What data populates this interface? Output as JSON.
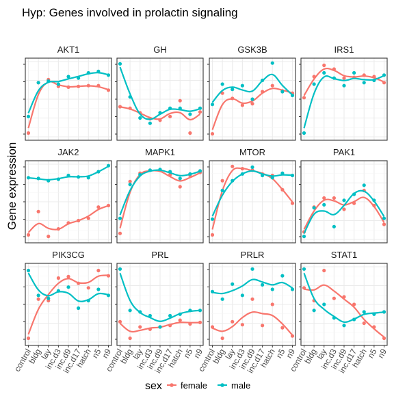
{
  "chart_data": {
    "type": "line",
    "title": "Hyp: Genes involved in prolactin signaling",
    "xlabel": "",
    "ylabel": "Gene expression",
    "categories": [
      "control",
      "bldg",
      "lay",
      "inc.d3",
      "inc.d9",
      "inc.d17",
      "hatch",
      "n5",
      "n9"
    ],
    "facet_grid": {
      "rows": 3,
      "cols": 4
    },
    "grid": true,
    "legend": {
      "title": "sex",
      "position": "bottom",
      "entries": [
        {
          "name": "female",
          "color": "#F8766D"
        },
        {
          "name": "male",
          "color": "#00BFC4"
        }
      ]
    },
    "colors": {
      "female": "#F8766D",
      "male": "#00BFC4"
    },
    "panels": [
      {
        "gene": "AKT1",
        "female": [
          0.05,
          0.72,
          0.76,
          0.67,
          0.66,
          0.67,
          0.68,
          0.68,
          0.62
        ],
        "male": [
          0.27,
          0.72,
          0.74,
          0.7,
          0.8,
          0.78,
          0.85,
          0.87,
          0.82
        ]
      },
      {
        "gene": "GH",
        "female": [
          0.4,
          0.38,
          0.32,
          0.24,
          0.22,
          0.27,
          0.48,
          0.05,
          0.33
        ],
        "male": [
          0.97,
          0.53,
          0.25,
          0.18,
          0.32,
          0.38,
          0.38,
          0.3,
          0.38
        ]
      },
      {
        "gene": "GSK3B",
        "female": [
          0.04,
          0.58,
          0.51,
          0.42,
          0.44,
          0.6,
          0.68,
          0.61,
          0.58
        ],
        "male": [
          0.43,
          0.7,
          0.63,
          0.68,
          0.5,
          0.75,
          0.98,
          0.6,
          0.55
        ]
      },
      {
        "gene": "IRS1",
        "female": [
          0.52,
          0.8,
          0.95,
          0.9,
          0.78,
          0.79,
          0.82,
          0.8,
          0.72
        ],
        "male": [
          0.05,
          0.7,
          0.85,
          0.78,
          0.68,
          0.85,
          0.72,
          0.75,
          0.82
        ]
      },
      {
        "gene": "JAK2",
        "female": [
          0.06,
          0.37,
          0.04,
          0.14,
          0.22,
          0.25,
          0.28,
          0.43,
          0.45
        ],
        "male": [
          0.82,
          0.81,
          0.78,
          0.8,
          0.85,
          0.83,
          0.82,
          0.9,
          0.98
        ]
      },
      {
        "gene": "MAPK1",
        "female": [
          0.08,
          0.77,
          0.88,
          0.92,
          0.92,
          0.86,
          0.7,
          0.85,
          0.89
        ],
        "male": [
          0.28,
          0.73,
          0.86,
          0.92,
          0.93,
          0.9,
          0.81,
          0.87,
          0.91
        ]
      },
      {
        "gene": "MTOR",
        "female": [
          0.06,
          0.78,
          0.97,
          0.94,
          0.92,
          0.87,
          0.85,
          0.66,
          0.48
        ],
        "male": [
          0.27,
          0.65,
          0.78,
          0.87,
          0.96,
          0.85,
          0.82,
          0.88,
          0.85
        ]
      },
      {
        "gene": "PAK1",
        "female": [
          0.1,
          0.43,
          0.55,
          0.55,
          0.4,
          0.48,
          0.65,
          0.45,
          0.2
        ],
        "male": [
          0.04,
          0.42,
          0.46,
          0.17,
          0.52,
          0.6,
          0.72,
          0.52,
          0.28
        ]
      },
      {
        "gene": "PIK3CG",
        "female": [
          0.05,
          0.57,
          0.55,
          0.85,
          0.87,
          0.78,
          0.72,
          0.95,
          0.88
        ],
        "male": [
          0.95,
          0.62,
          0.58,
          0.68,
          0.73,
          0.45,
          0.55,
          0.7,
          0.62
        ]
      },
      {
        "gene": "PRL",
        "female": [
          0.27,
          0.05,
          0.2,
          0.17,
          0.2,
          0.22,
          0.29,
          0.24,
          0.26
        ],
        "male": [
          0.97,
          0.42,
          0.4,
          0.35,
          0.2,
          0.35,
          0.37,
          0.42,
          0.42
        ]
      },
      {
        "gene": "PRLR",
        "female": [
          0.2,
          0.05,
          0.27,
          0.23,
          0.57,
          0.22,
          0.5,
          0.19,
          0.08
        ],
        "male": [
          0.67,
          0.57,
          0.77,
          0.62,
          0.97,
          0.76,
          0.7,
          0.88,
          0.7
        ]
      },
      {
        "gene": "STAT1",
        "female": [
          0.72,
          0.55,
          0.95,
          0.58,
          0.6,
          0.5,
          0.25,
          0.2,
          0.05
        ],
        "male": [
          0.97,
          0.42,
          0.5,
          0.32,
          0.22,
          0.3,
          0.4,
          0.37,
          0.4
        ]
      }
    ]
  }
}
